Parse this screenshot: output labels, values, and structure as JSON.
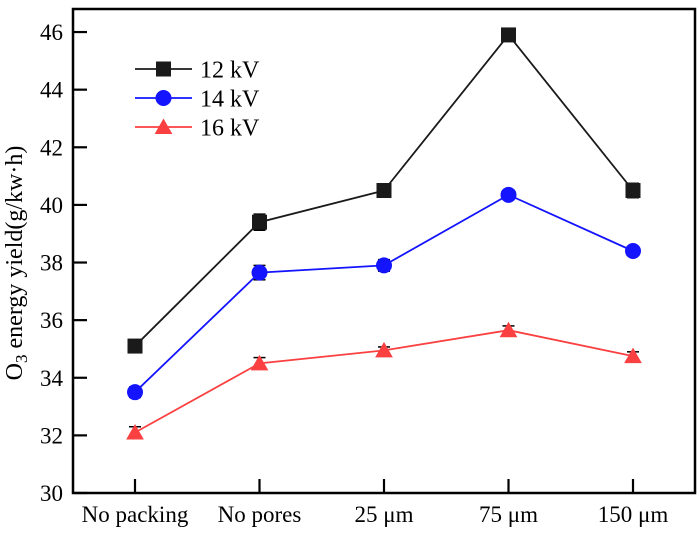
{
  "chart_data": {
    "type": "line",
    "title": "",
    "xlabel": "",
    "ylabel": "O3 energy yield(g/kw·h)",
    "ylabel_parts": {
      "prefix": "O",
      "sub": "3",
      "suffix": " energy yield(g/kw·h)"
    },
    "categories": [
      "No packing",
      "No pores",
      "25 μm",
      "75 μm",
      "150 μm"
    ],
    "series": [
      {
        "name": "12 kV",
        "color": "#1a1a1a",
        "marker": "square",
        "values": [
          35.1,
          39.4,
          40.5,
          45.9,
          40.5
        ],
        "errors": [
          0.12,
          0.28,
          0.18,
          0.22,
          0.25
        ]
      },
      {
        "name": "14 kV",
        "color": "#1414ff",
        "marker": "circle",
        "values": [
          33.5,
          37.65,
          37.9,
          40.35,
          38.4
        ],
        "errors": [
          0.18,
          0.25,
          0.2,
          0.15,
          0.15
        ]
      },
      {
        "name": "16 kV",
        "color": "#fa4040",
        "marker": "triangle",
        "values": [
          32.1,
          34.5,
          34.95,
          35.65,
          34.75
        ],
        "errors": [
          0.2,
          0.2,
          0.12,
          0.15,
          0.15
        ]
      }
    ],
    "y_ticks": [
      30,
      32,
      34,
      36,
      38,
      40,
      42,
      44,
      46
    ],
    "ylim": [
      30,
      46.8
    ],
    "grid": false,
    "legend_position": "upper-left",
    "error_bar_color": "#000000",
    "axis_color": "#000000"
  }
}
